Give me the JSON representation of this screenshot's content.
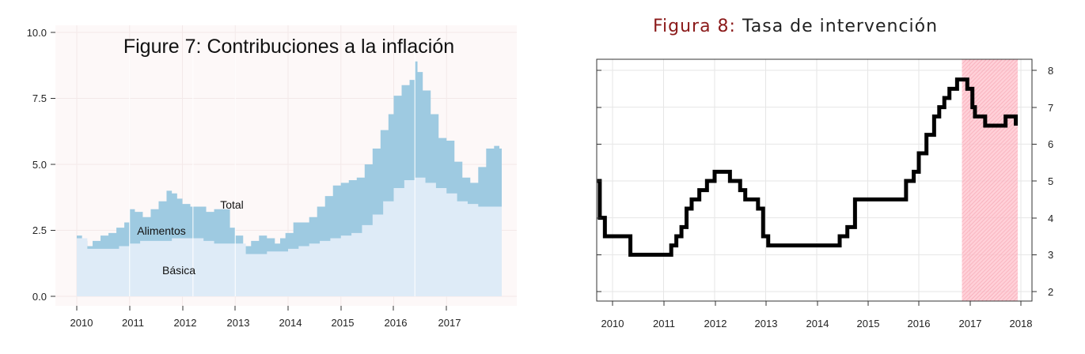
{
  "charts": [
    {
      "type": "area",
      "title": "Figure 7: Contribuciones a la inflación",
      "x_ticks": [
        "2010",
        "2011",
        "2012",
        "2013",
        "2014",
        "2015",
        "2016",
        "2017"
      ],
      "y_ticks": [
        "0.0",
        "2.5",
        "5.0",
        "7.5",
        "10.0"
      ],
      "annotations": {
        "total": "Total",
        "alimentos": "Alimentos",
        "basica": "Básica"
      },
      "colors": {
        "total": "#9ecae1",
        "basica": "#deebf7",
        "panel": "#fdf8f8"
      }
    },
    {
      "type": "line",
      "title_prefix": "Figura 8:",
      "title_rest": " Tasa de intervención",
      "x_ticks": [
        "2010",
        "2011",
        "2012",
        "2013",
        "2014",
        "2015",
        "2016",
        "2017",
        "2018"
      ],
      "y_ticks": [
        "2",
        "3",
        "4",
        "5",
        "6",
        "7",
        "8"
      ],
      "colors": {
        "line": "#000000",
        "forecast_band": "#ffc0cb",
        "title_prefix": "#8b1a1a"
      }
    }
  ],
  "chart_data": [
    {
      "type": "area",
      "title": "Figure 7: Contribuciones a la inflación",
      "xlabel": "",
      "ylabel": "",
      "xlim": [
        2010,
        2018
      ],
      "ylim": [
        0,
        10
      ],
      "series": [
        {
          "name": "Total",
          "x": [
            2010.0,
            2010.1,
            2010.2,
            2010.3,
            2010.45,
            2010.6,
            2010.75,
            2010.9,
            2011.0,
            2011.1,
            2011.25,
            2011.4,
            2011.55,
            2011.7,
            2011.8,
            2011.9,
            2012.0,
            2012.15,
            2012.3,
            2012.45,
            2012.6,
            2012.75,
            2012.9,
            2013.0,
            2013.15,
            2013.3,
            2013.45,
            2013.6,
            2013.75,
            2013.85,
            2013.95,
            2014.1,
            2014.25,
            2014.4,
            2014.55,
            2014.7,
            2014.85,
            2015.0,
            2015.15,
            2015.3,
            2015.45,
            2015.6,
            2015.75,
            2015.9,
            2016.0,
            2016.15,
            2016.3,
            2016.4,
            2016.45,
            2016.55,
            2016.7,
            2016.85,
            2017.0,
            2017.15,
            2017.3,
            2017.45,
            2017.6,
            2017.75,
            2017.9,
            2018.0
          ],
          "values": [
            2.3,
            2.1,
            1.9,
            2.1,
            2.3,
            2.4,
            2.6,
            2.8,
            3.3,
            3.2,
            3.0,
            3.3,
            3.6,
            4.0,
            3.9,
            3.7,
            3.5,
            3.4,
            3.4,
            3.2,
            3.3,
            3.3,
            2.6,
            2.3,
            1.9,
            2.1,
            2.3,
            2.2,
            2.0,
            2.2,
            2.4,
            2.8,
            2.8,
            3.0,
            3.4,
            3.8,
            4.2,
            4.3,
            4.4,
            4.5,
            5.0,
            5.6,
            6.3,
            6.9,
            7.6,
            8.0,
            8.2,
            8.9,
            8.5,
            7.8,
            6.9,
            6.0,
            5.9,
            5.1,
            4.5,
            4.3,
            4.9,
            5.6,
            5.7,
            5.6
          ]
        },
        {
          "name": "Básica",
          "x": [
            2010.0,
            2010.2,
            2010.4,
            2010.6,
            2010.8,
            2011.0,
            2011.2,
            2011.4,
            2011.6,
            2011.8,
            2012.0,
            2012.2,
            2012.4,
            2012.6,
            2012.8,
            2013.0,
            2013.2,
            2013.4,
            2013.6,
            2013.8,
            2014.0,
            2014.2,
            2014.4,
            2014.6,
            2014.8,
            2015.0,
            2015.2,
            2015.4,
            2015.6,
            2015.8,
            2016.0,
            2016.2,
            2016.4,
            2016.6,
            2016.8,
            2017.0,
            2017.2,
            2017.4,
            2017.6,
            2017.8,
            2018.0
          ],
          "values": [
            2.2,
            1.8,
            1.8,
            1.8,
            1.9,
            2.0,
            2.1,
            2.1,
            2.1,
            2.2,
            2.2,
            2.2,
            2.1,
            2.0,
            2.0,
            2.0,
            1.6,
            1.6,
            1.7,
            1.7,
            1.8,
            1.9,
            2.0,
            2.1,
            2.2,
            2.3,
            2.4,
            2.7,
            3.1,
            3.6,
            4.1,
            4.4,
            4.5,
            4.3,
            4.1,
            3.9,
            3.6,
            3.5,
            3.4,
            3.4,
            3.4
          ]
        }
      ]
    },
    {
      "type": "line",
      "title": "Figura 8: Tasa de intervención",
      "xlabel": "",
      "ylabel": "",
      "xlim": [
        2010,
        2018
      ],
      "ylim": [
        2,
        8
      ],
      "shaded_region": [
        2017.0,
        2018.0
      ],
      "series": [
        {
          "name": "",
          "x": [
            2009.7,
            2009.75,
            2009.85,
            2010.3,
            2010.35,
            2011.05,
            2011.15,
            2011.25,
            2011.35,
            2011.45,
            2011.55,
            2011.7,
            2011.85,
            2012.0,
            2012.1,
            2012.2,
            2012.3,
            2012.5,
            2012.6,
            2012.85,
            2012.95,
            2013.05,
            2013.15,
            2013.25,
            2013.35,
            2014.3,
            2014.45,
            2014.6,
            2014.75,
            2015.0,
            2015.5,
            2015.75,
            2015.9,
            2016.0,
            2016.15,
            2016.3,
            2016.4,
            2016.5,
            2016.6,
            2016.75,
            2016.85,
            2016.95,
            2017.05,
            2017.1,
            2017.2,
            2017.3,
            2017.4,
            2017.5,
            2017.6,
            2017.7,
            2017.75,
            2017.8,
            2017.9
          ],
          "values": [
            5.0,
            4.0,
            3.5,
            3.5,
            3.0,
            3.0,
            3.25,
            3.5,
            3.75,
            4.25,
            4.5,
            4.75,
            5.0,
            5.25,
            5.25,
            5.25,
            5.0,
            4.75,
            4.5,
            4.25,
            3.5,
            3.25,
            3.25,
            3.25,
            3.25,
            3.25,
            3.5,
            3.75,
            4.5,
            4.5,
            4.5,
            5.0,
            5.25,
            5.75,
            6.25,
            6.75,
            7.0,
            7.25,
            7.5,
            7.75,
            7.75,
            7.5,
            7.0,
            6.75,
            6.75,
            6.5,
            6.5,
            6.5,
            6.5,
            6.75,
            6.75,
            6.75,
            6.5
          ]
        }
      ]
    }
  ]
}
